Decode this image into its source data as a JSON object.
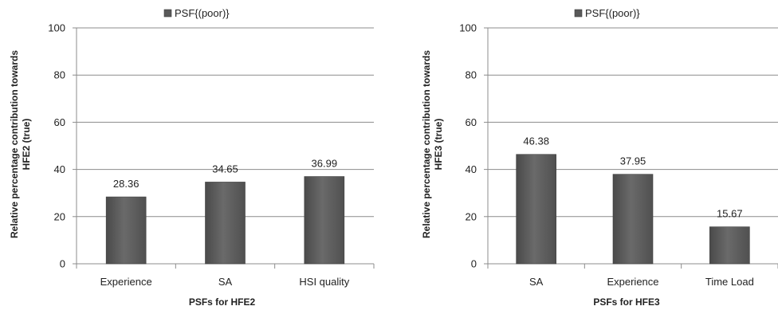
{
  "chart_data": [
    {
      "type": "bar",
      "categories": [
        "Experience",
        "SA",
        "HSI quality"
      ],
      "series": [
        {
          "name": "PSF{(poor)}",
          "values": [
            28.36,
            34.65,
            36.99
          ]
        }
      ],
      "data_labels": [
        "28.36",
        "34.65",
        "36.99"
      ],
      "xlabel": "PSFs for HFE2",
      "ylabel": "Relative percentage contribution towards HFE2 (true)",
      "ylabel_lines": [
        "Relative percentage contribution towards",
        "HFE2 (true)"
      ],
      "ylim": [
        0,
        100
      ],
      "yticks": [
        0,
        20,
        40,
        60,
        80,
        100
      ],
      "ytick_labels": [
        "0",
        "20",
        "40",
        "60",
        "80",
        "100"
      ],
      "grid": true,
      "legend_position": "top",
      "bar_color": "#595959"
    },
    {
      "type": "bar",
      "categories": [
        "SA",
        "Experience",
        "Time Load"
      ],
      "series": [
        {
          "name": "PSF{(poor)}",
          "values": [
            46.38,
            37.95,
            15.67
          ]
        }
      ],
      "data_labels": [
        "46.38",
        "37.95",
        "15.67"
      ],
      "xlabel": "PSFs  for HFE3",
      "ylabel": "Relative percentage contribution towards HFE3 (true)",
      "ylabel_lines": [
        "Relative percentage contribution towards",
        "HFE3 (true)"
      ],
      "ylim": [
        0,
        100
      ],
      "yticks": [
        0,
        20,
        40,
        60,
        80,
        100
      ],
      "ytick_labels": [
        "0",
        "20",
        "40",
        "60",
        "80",
        "100"
      ],
      "grid": true,
      "legend_position": "top",
      "bar_color": "#595959"
    }
  ]
}
